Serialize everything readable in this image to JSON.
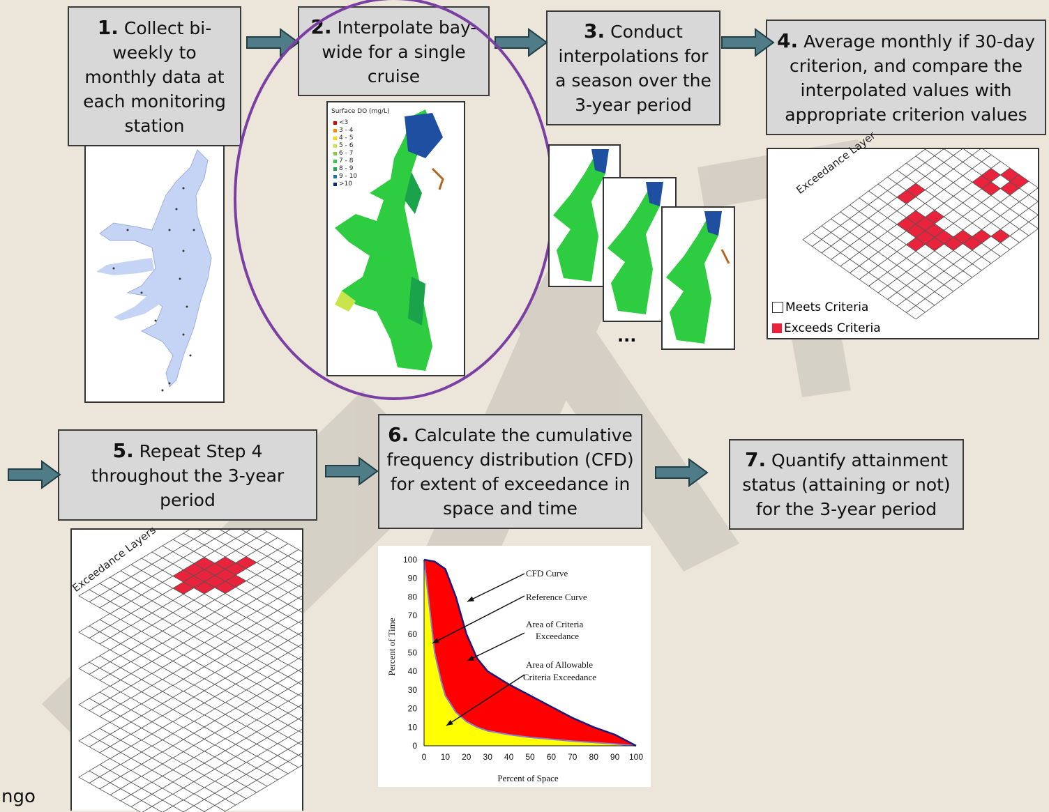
{
  "steps": [
    {
      "num": "1.",
      "text": "Collect bi-weekly to monthly data at each monitoring station"
    },
    {
      "num": "2.",
      "text": "Interpolate bay-wide for a single cruise"
    },
    {
      "num": "3.",
      "text": "Conduct interpolations for a season over the 3-year period"
    },
    {
      "num": "4.",
      "text": "Average monthly if 30-day criterion, and compare the interpolated values with appropriate criterion values"
    },
    {
      "num": "5.",
      "text": "Repeat Step 4 throughout the 3-year period"
    },
    {
      "num": "6.",
      "text": "Calculate the cumulative frequency distribution (CFD) for extent of exceedance in space and time"
    },
    {
      "num": "7.",
      "text": "Quantify attainment status (attaining or not) for the 3-year period"
    }
  ],
  "do_map": {
    "title": "Surface DO (mg/L)",
    "legend": [
      "<3",
      "3 - 4",
      "4 - 5",
      "5 - 6",
      "6 - 7",
      "7 - 8",
      "8 - 9",
      "9 - 10",
      ">10"
    ],
    "legend_colors": [
      "#d40000",
      "#ff8c00",
      "#ffd700",
      "#c8e64b",
      "#7fd13b",
      "#2ecc40",
      "#1aa34a",
      "#1f6fb2",
      "#0b2a7a"
    ]
  },
  "season_maps": {
    "ellipsis": "..."
  },
  "exceedance_grid": {
    "layer_label": "Exceedance Layer",
    "legend": [
      {
        "label": "Meets Criteria",
        "color": "#ffffff"
      },
      {
        "label": "Exceeds Criteria",
        "color": "#e8233b"
      }
    ]
  },
  "exceedance_layers": {
    "label": "Exceedance Layers"
  },
  "chart_data": {
    "type": "area",
    "title": "",
    "xlabel": "Percent of Space",
    "ylabel": "Percent of Time",
    "xlim": [
      0,
      100
    ],
    "ylim": [
      0,
      100
    ],
    "xticks": [
      "0",
      "10",
      "20",
      "30",
      "40",
      "50",
      "60",
      "70",
      "80",
      "90",
      "100"
    ],
    "yticks": [
      "0",
      "10",
      "20",
      "30",
      "40",
      "50",
      "60",
      "70",
      "80",
      "90",
      "100"
    ],
    "series": [
      {
        "name": "CFD Curve",
        "x": [
          0,
          5,
          10,
          15,
          20,
          25,
          30,
          40,
          50,
          60,
          70,
          80,
          90,
          100
        ],
        "y": [
          100,
          99,
          95,
          80,
          60,
          47,
          40,
          33,
          27,
          21,
          15,
          10,
          6,
          0
        ]
      },
      {
        "name": "Reference Curve",
        "x": [
          0,
          3,
          5,
          8,
          10,
          15,
          20,
          25,
          30,
          40,
          50,
          60,
          70,
          80,
          90,
          100
        ],
        "y": [
          100,
          70,
          50,
          35,
          27,
          18,
          13,
          10,
          8,
          6,
          4.5,
          3.5,
          2.5,
          1.8,
          1,
          0
        ]
      }
    ],
    "annotations": [
      "CFD Curve",
      "Reference Curve",
      "Area of Criteria Exceedance",
      "Area of Allowable Criteria Exceedance"
    ],
    "colors": {
      "exceedance": "#ff0000",
      "allowable": "#ffff00",
      "curve": "#1a1a7a"
    }
  },
  "footer": {
    "text": "ngo"
  }
}
